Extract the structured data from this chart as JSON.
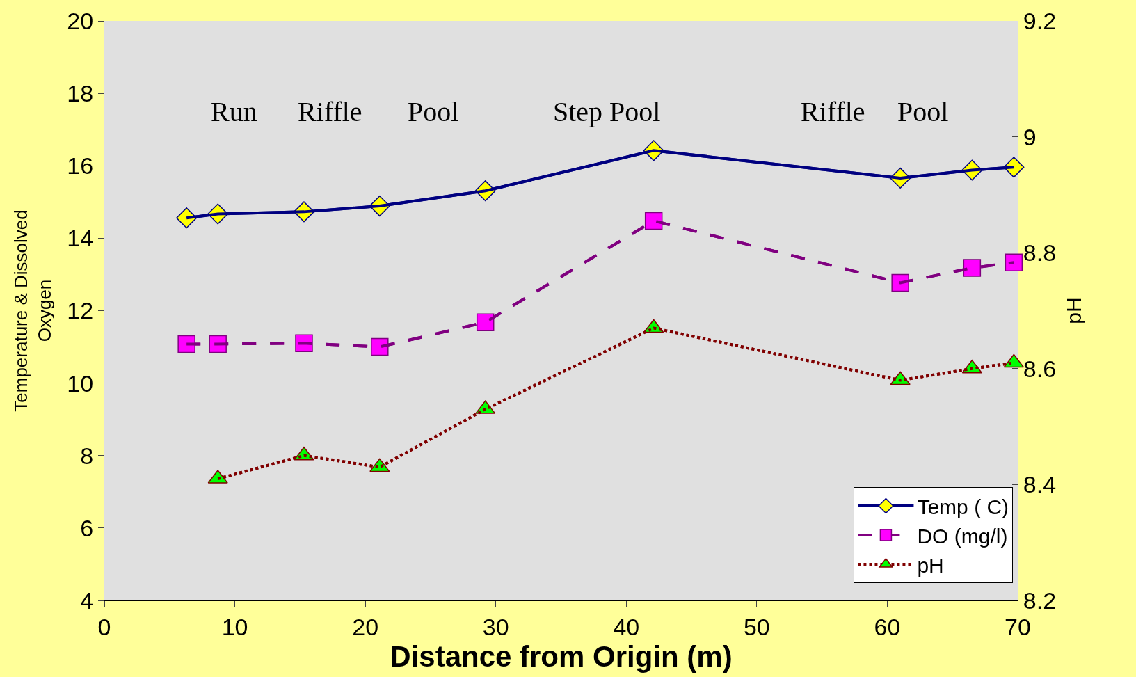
{
  "chart_data": {
    "type": "line",
    "xlabel": "Distance from Origin (m)",
    "ylabel": "Temperature & Dissolved Oxygen",
    "y2label": "pH",
    "xlim": [
      0,
      70
    ],
    "xticks": [
      0,
      10,
      20,
      30,
      40,
      50,
      60,
      70
    ],
    "ylim": [
      4,
      20
    ],
    "yticks": [
      4,
      6,
      8,
      10,
      12,
      14,
      16,
      18,
      20
    ],
    "y2lim": [
      8.2,
      9.2
    ],
    "y2ticks": [
      8.2,
      8.4,
      8.6,
      8.8,
      9,
      9.2
    ],
    "grid": false,
    "legend": "bottom right",
    "series": [
      {
        "name": "Temp ( C)",
        "color": "#000080",
        "marker": "diamond",
        "line_style": "solid",
        "x": [
          6.3,
          8.7,
          15.3,
          21.1,
          29.2,
          42.1,
          61.0,
          66.5,
          69.7
        ],
        "values": [
          14.56,
          14.67,
          14.73,
          14.89,
          15.31,
          16.42,
          15.66,
          15.88,
          15.96
        ]
      },
      {
        "name": "DO (mg/l)",
        "color": "#800080",
        "marker": "square",
        "line_style": "dashed",
        "x": [
          6.3,
          8.7,
          15.3,
          21.1,
          29.2,
          42.1,
          61.0,
          66.5,
          69.7
        ],
        "values": [
          11.08,
          11.08,
          11.1,
          11.0,
          11.68,
          14.48,
          12.77,
          13.18,
          13.33
        ]
      },
      {
        "name": "pH",
        "color": "#800000",
        "marker": "triangle",
        "line_style": "dotted",
        "axis": "y2",
        "x": [
          8.7,
          15.3,
          21.1,
          29.2,
          42.1,
          61.0,
          66.5,
          69.7
        ],
        "values": [
          8.41,
          8.45,
          8.43,
          8.53,
          8.67,
          8.58,
          8.6,
          8.61
        ]
      }
    ],
    "annotations": [
      "Run",
      "Riffle",
      "Pool",
      "Step Pool",
      "Riffle",
      "Pool"
    ]
  }
}
